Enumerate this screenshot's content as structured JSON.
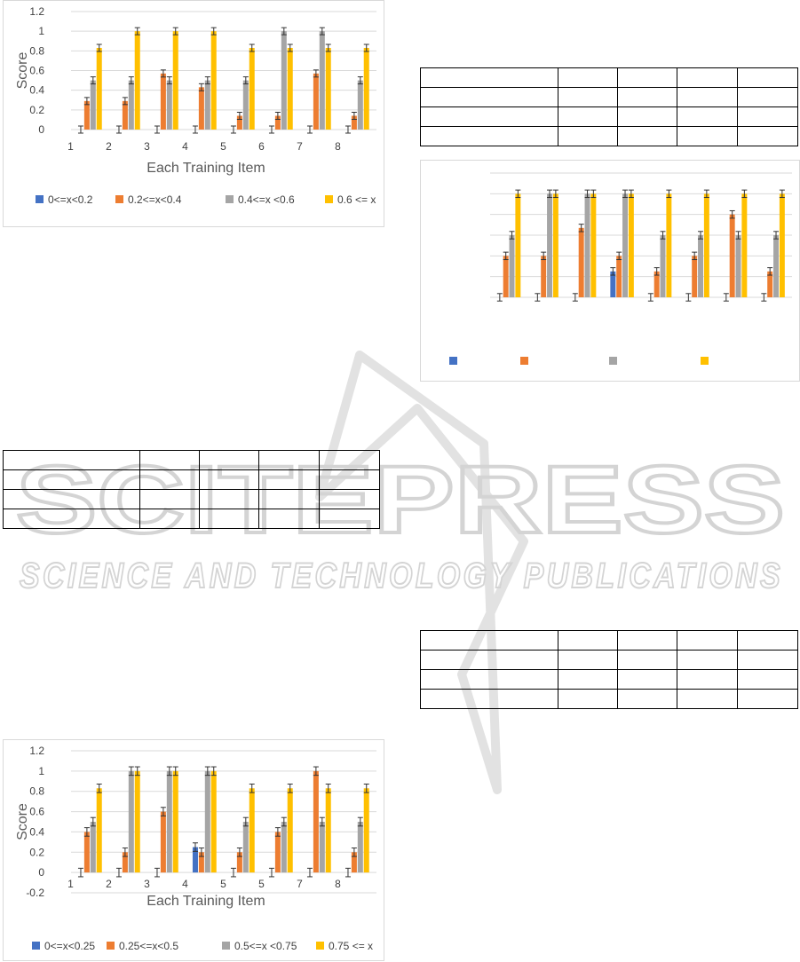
{
  "watermark": {
    "main": "SCITEPRESS",
    "sub": "SCIENCE AND TECHNOLOGY PUBLICATIONS"
  },
  "chart_data": [
    {
      "id": "chart-a",
      "type": "bar",
      "xlabel": "Each Training Item",
      "ylabel": "Score",
      "ylim": [
        0,
        1.2
      ],
      "yticks": [
        "0",
        "0.2",
        "0.4",
        "0.6",
        "0.8",
        "1",
        "1.2"
      ],
      "ytick_values": [
        0,
        0.2,
        0.4,
        0.6,
        0.8,
        1,
        1.2
      ],
      "categories": [
        "1",
        "2",
        "3",
        "4",
        "5",
        "6",
        "7",
        "8"
      ],
      "legend_position": "bottom",
      "series": [
        {
          "name": "0<=x<0.2",
          "color": "#4472C4",
          "values": [
            0,
            0,
            0,
            0,
            0,
            0,
            0,
            0
          ]
        },
        {
          "name": "0.2<=x<0.4",
          "color": "#ED7D31",
          "values": [
            0.29,
            0.29,
            0.57,
            0.43,
            0.14,
            0.14,
            0.57,
            0.14
          ]
        },
        {
          "name": "0.4<=x <0.6",
          "color": "#A5A5A5",
          "values": [
            0.5,
            0.5,
            0.5,
            0.5,
            0.5,
            1.0,
            1.0,
            0.5
          ]
        },
        {
          "name": "0.6 <= x",
          "color": "#FFC000",
          "values": [
            0.83,
            1.0,
            1.0,
            1.0,
            0.83,
            0.83,
            0.83,
            0.83
          ]
        }
      ],
      "error_bars": true
    },
    {
      "id": "chart-b",
      "type": "bar",
      "xlabel": "",
      "ylabel": "",
      "ylim": [
        0,
        1.2
      ],
      "yticks": [],
      "ytick_values": [],
      "categories": [
        "",
        "",
        "",
        "",
        "",
        "",
        "",
        ""
      ],
      "legend_position": "bottom",
      "series": [
        {
          "name": "",
          "color": "#4472C4",
          "values": [
            0,
            0,
            0,
            0.25,
            0,
            0,
            0,
            0
          ]
        },
        {
          "name": "",
          "color": "#ED7D31",
          "values": [
            0.4,
            0.4,
            0.67,
            0.4,
            0.25,
            0.4,
            0.8,
            0.25
          ]
        },
        {
          "name": "",
          "color": "#A5A5A5",
          "values": [
            0.6,
            1.0,
            1.0,
            1.0,
            0.6,
            0.6,
            0.6,
            0.6
          ]
        },
        {
          "name": "",
          "color": "#FFC000",
          "values": [
            1.0,
            1.0,
            1.0,
            1.0,
            1.0,
            1.0,
            1.0,
            1.0
          ]
        }
      ],
      "error_bars": true
    },
    {
      "id": "chart-c",
      "type": "bar",
      "xlabel": "Each Training Item",
      "ylabel": "Score",
      "ylim": [
        -0.2,
        1.2
      ],
      "yticks": [
        "-0.2",
        "0",
        "0.2",
        "0.4",
        "0.6",
        "0.8",
        "1",
        "1.2"
      ],
      "ytick_values": [
        -0.2,
        0,
        0.2,
        0.4,
        0.6,
        0.8,
        1,
        1.2
      ],
      "categories": [
        "1",
        "2",
        "3",
        "4",
        "5",
        "5",
        "7",
        "8"
      ],
      "legend_position": "bottom",
      "series": [
        {
          "name": "0<=x<0.25",
          "color": "#4472C4",
          "values": [
            0,
            0,
            0,
            0.25,
            0,
            0,
            0,
            0
          ]
        },
        {
          "name": "0.25<=x<0.5",
          "color": "#ED7D31",
          "values": [
            0.4,
            0.2,
            0.6,
            0.2,
            0.2,
            0.4,
            1.0,
            0.2
          ]
        },
        {
          "name": "0.5<=x <0.75",
          "color": "#A5A5A5",
          "values": [
            0.5,
            1.0,
            1.0,
            1.0,
            0.5,
            0.5,
            0.5,
            0.5
          ]
        },
        {
          "name": "0.75 <= x",
          "color": "#FFC000",
          "values": [
            0.83,
            1.0,
            1.0,
            1.0,
            0.83,
            0.83,
            0.83,
            0.83
          ]
        }
      ],
      "error_bars": true
    }
  ],
  "tables": {
    "table_a": {
      "rows": 4,
      "cols": 5
    },
    "table_b": {
      "rows": 4,
      "cols": 5
    },
    "table_c": {
      "rows": 4,
      "cols": 5
    }
  }
}
